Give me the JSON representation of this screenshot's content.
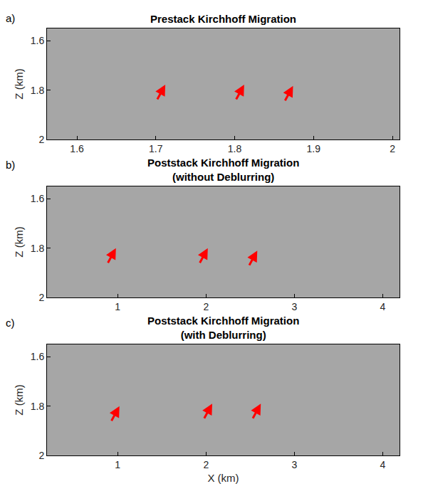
{
  "chart_data": [
    {
      "type": "image",
      "panel": "a)",
      "title": "Prestack Kirchhoff Migration",
      "ylabel": "Z (km)",
      "xlim": [
        1.562,
        2.009
      ],
      "xticks": [
        1.6,
        1.7,
        1.8,
        1.9,
        2
      ],
      "ylim": [
        2,
        1.55
      ],
      "yticks": [
        1.6,
        1.8,
        2
      ],
      "arrows": {
        "x": [
          1.712,
          1.812,
          1.874
        ],
        "y": [
          1.778,
          1.778,
          1.783
        ],
        "color": "#ff0000"
      }
    },
    {
      "type": "image",
      "panel": "b)",
      "title": "Poststack Kirchhoff Migration",
      "subtitle": "(without Deblurring)",
      "ylabel": "Z (km)",
      "xlim": [
        0.2,
        4.19
      ],
      "xticks": [
        1,
        2,
        3,
        4
      ],
      "ylim": [
        2,
        1.55
      ],
      "yticks": [
        1.6,
        1.8,
        2
      ],
      "arrows": {
        "x": [
          0.98,
          2.02,
          2.58
        ],
        "y": [
          1.8,
          1.8,
          1.81
        ],
        "color": "#ff0000"
      }
    },
    {
      "type": "image",
      "panel": "c)",
      "title": "Poststack Kirchhoff Migration",
      "subtitle": "(with Deblurring)",
      "ylabel": "Z (km)",
      "xlabel": "X (km)",
      "xlim": [
        0.2,
        4.19
      ],
      "xticks": [
        1,
        2,
        3,
        4
      ],
      "ylim": [
        2,
        1.55
      ],
      "yticks": [
        1.6,
        1.8,
        2
      ],
      "arrows": {
        "x": [
          1.02,
          2.07,
          2.62
        ],
        "y": [
          1.8,
          1.79,
          1.79
        ],
        "color": "#ff0000"
      }
    }
  ]
}
